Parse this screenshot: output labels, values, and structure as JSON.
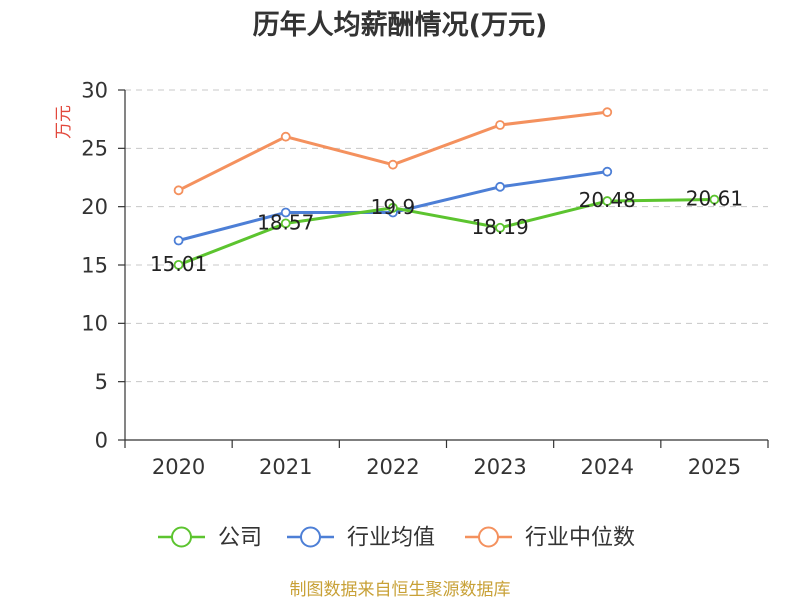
{
  "footer": "制图数据来自恒生聚源数据库",
  "colors": {
    "title": "#333333",
    "unit_label": "#e2483c",
    "footer": "#c8a137",
    "grid": "#c8c8c8"
  },
  "chart_data": {
    "type": "line",
    "title": "历年人均薪酬情况(万元)",
    "xlabel": "",
    "ylabel": "万元",
    "categories": [
      "2020",
      "2021",
      "2022",
      "2023",
      "2024",
      "2025"
    ],
    "ylim": [
      0,
      30
    ],
    "yticks": [
      0,
      5,
      10,
      15,
      20,
      25,
      30
    ],
    "grid": true,
    "legend": "bottom",
    "series": [
      {
        "name": "公司",
        "color": "#5cc42f",
        "data_labels": true,
        "values": [
          15.01,
          18.57,
          19.9,
          18.19,
          20.48,
          20.61
        ]
      },
      {
        "name": "行业均值",
        "color": "#4d7fd6",
        "data_labels": false,
        "values": [
          17.1,
          19.5,
          19.5,
          21.7,
          23.0,
          null
        ]
      },
      {
        "name": "行业中位数",
        "color": "#f4915e",
        "data_labels": false,
        "values": [
          21.4,
          26.0,
          23.6,
          27.0,
          28.1,
          null
        ]
      }
    ]
  }
}
